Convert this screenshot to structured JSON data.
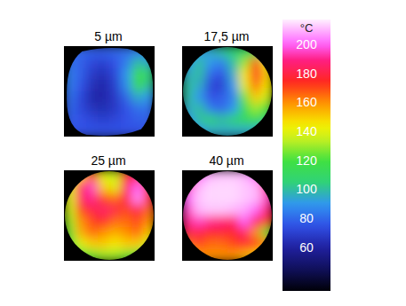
{
  "chart_data": {
    "type": "heatmap",
    "panels": [
      {
        "title": "5 µm",
        "cells": [
          [
            80,
            80,
            78,
            78,
            80,
            82,
            85,
            85
          ],
          [
            82,
            78,
            72,
            70,
            75,
            85,
            100,
            95
          ],
          [
            85,
            78,
            68,
            65,
            72,
            90,
            118,
            105
          ],
          [
            85,
            75,
            65,
            62,
            70,
            88,
            115,
            100
          ],
          [
            82,
            72,
            62,
            62,
            68,
            80,
            95,
            90
          ],
          [
            80,
            72,
            66,
            64,
            68,
            75,
            82,
            82
          ],
          [
            78,
            75,
            72,
            70,
            72,
            75,
            78,
            78
          ],
          [
            75,
            75,
            75,
            75,
            75,
            75,
            75,
            75
          ]
        ]
      },
      {
        "title": "17,5 µm",
        "cells": [
          [
            85,
            90,
            95,
            100,
            105,
            110,
            115,
            100
          ],
          [
            90,
            100,
            90,
            85,
            100,
            130,
            170,
            140
          ],
          [
            95,
            100,
            80,
            75,
            95,
            145,
            175,
            150
          ],
          [
            100,
            95,
            72,
            70,
            90,
            140,
            165,
            145
          ],
          [
            100,
            90,
            75,
            78,
            85,
            125,
            150,
            135
          ],
          [
            95,
            100,
            85,
            80,
            90,
            115,
            130,
            120
          ],
          [
            90,
            100,
            105,
            100,
            105,
            110,
            115,
            105
          ],
          [
            85,
            90,
            95,
            95,
            95,
            95,
            95,
            90
          ]
        ]
      },
      {
        "title": "25 µm",
        "cells": [
          [
            130,
            150,
            170,
            140,
            135,
            175,
            180,
            160
          ],
          [
            140,
            185,
            195,
            150,
            140,
            185,
            200,
            170
          ],
          [
            140,
            185,
            190,
            170,
            165,
            180,
            205,
            175
          ],
          [
            135,
            170,
            180,
            185,
            180,
            170,
            180,
            165
          ],
          [
            130,
            160,
            170,
            175,
            165,
            165,
            170,
            160
          ],
          [
            125,
            155,
            165,
            160,
            155,
            160,
            165,
            150
          ],
          [
            120,
            140,
            150,
            150,
            145,
            150,
            150,
            135
          ],
          [
            115,
            120,
            125,
            130,
            130,
            125,
            120,
            115
          ]
        ]
      },
      {
        "title": "40 µm",
        "cells": [
          [
            180,
            200,
            210,
            212,
            212,
            210,
            200,
            185
          ],
          [
            195,
            210,
            214,
            214,
            214,
            212,
            210,
            190
          ],
          [
            200,
            212,
            214,
            214,
            214,
            212,
            210,
            195
          ],
          [
            195,
            210,
            212,
            212,
            210,
            208,
            200,
            185
          ],
          [
            190,
            195,
            190,
            188,
            185,
            200,
            185,
            170
          ],
          [
            180,
            180,
            175,
            178,
            175,
            185,
            160,
            120
          ],
          [
            165,
            170,
            165,
            165,
            170,
            175,
            170,
            160
          ],
          [
            150,
            160,
            160,
            160,
            160,
            155,
            150,
            140
          ]
        ]
      }
    ],
    "colorbar_label": "°C",
    "colorbar_range": [
      30,
      217
    ],
    "colorbar_ticks": [
      60,
      80,
      100,
      120,
      140,
      160,
      180,
      200
    ]
  }
}
